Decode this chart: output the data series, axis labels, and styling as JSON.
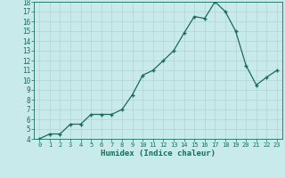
{
  "xlabel": "Humidex (Indice chaleur)",
  "x": [
    0,
    1,
    2,
    3,
    4,
    5,
    6,
    7,
    8,
    9,
    10,
    11,
    12,
    13,
    14,
    15,
    16,
    17,
    18,
    19,
    20,
    21,
    22,
    23
  ],
  "y": [
    4.0,
    4.5,
    4.5,
    5.5,
    5.5,
    6.5,
    6.5,
    6.5,
    7.0,
    8.5,
    10.5,
    11.0,
    12.0,
    13.0,
    14.8,
    16.5,
    16.3,
    18.0,
    17.0,
    15.0,
    11.5,
    9.5,
    10.3,
    11.0
  ],
  "xlim": [
    -0.5,
    23.5
  ],
  "ylim": [
    4,
    18
  ],
  "yticks": [
    4,
    5,
    6,
    7,
    8,
    9,
    10,
    11,
    12,
    13,
    14,
    15,
    16,
    17,
    18
  ],
  "xticks": [
    0,
    1,
    2,
    3,
    4,
    5,
    6,
    7,
    8,
    9,
    10,
    11,
    12,
    13,
    14,
    15,
    16,
    17,
    18,
    19,
    20,
    21,
    22,
    23
  ],
  "line_color": "#1a6b5a",
  "marker_color": "#1a6b5a",
  "bg_color": "#c8eaea",
  "grid_color": "#b0d4d4",
  "tick_color": "#1a6b5a",
  "label_color": "#1a6b5a",
  "font_family": "monospace",
  "xlabel_fontsize": 6.5,
  "tick_fontsize_x": 5.0,
  "tick_fontsize_y": 5.5
}
